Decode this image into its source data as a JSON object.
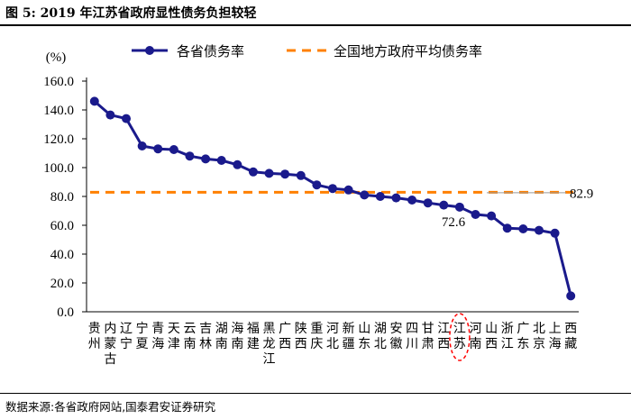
{
  "figure": {
    "title": "图 5:  2019 年江苏省政府显性债务负担较轻",
    "source": "数据来源:各省政府网站,国泰君安证券研究"
  },
  "chart_data": {
    "type": "line",
    "unit_label": "(%)",
    "ylim": [
      0,
      160
    ],
    "yticks": [
      "0.0",
      "20.0",
      "40.0",
      "60.0",
      "80.0",
      "100.0",
      "120.0",
      "140.0",
      "160.0"
    ],
    "categories": [
      "贵州",
      "内蒙古",
      "辽宁",
      "宁夏",
      "青海",
      "天津",
      "云南",
      "吉林",
      "湖南",
      "海南",
      "福建",
      "黑龙江",
      "广西",
      "陕西",
      "重庆",
      "河北",
      "新疆",
      "山东",
      "湖北",
      "安徽",
      "四川",
      "甘肃",
      "江西",
      "江苏",
      "河南",
      "山西",
      "浙江",
      "广东",
      "北京",
      "上海",
      "西藏"
    ],
    "series": [
      {
        "name": "各省债务率",
        "color": "#1a1a8c",
        "values": [
          146,
          136.5,
          134,
          115,
          113,
          112.5,
          108,
          106,
          105,
          102,
          97,
          96,
          95.5,
          94.5,
          88,
          85.5,
          84.5,
          81,
          80,
          79,
          77.5,
          75.5,
          74,
          72.6,
          67.5,
          66.5,
          58,
          57.5,
          56.5,
          54.5,
          11
        ]
      }
    ],
    "reference_line": {
      "name": "全国地方政府平均债务率",
      "value": 82.9,
      "label": "82.9",
      "color": "#ff8000"
    },
    "highlight": {
      "category": "江苏",
      "label": "72.6",
      "circle_color": "#ff0000"
    },
    "legend_position": "top",
    "grid": false
  }
}
